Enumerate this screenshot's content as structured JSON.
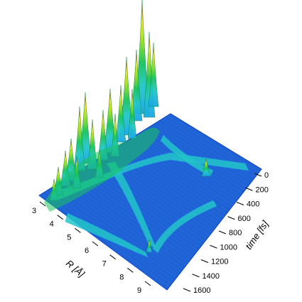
{
  "chart_data": {
    "type": "surface",
    "colors": [
      "#0a3fc4",
      "#1aa6e8",
      "#22c7c7",
      "#17c45a",
      "#9ee01a",
      "#f2e31a",
      "#f08a12",
      "#d41a1a"
    ],
    "r_axis": {
      "label": "R [Å]",
      "ticks": [
        "3",
        "4",
        "5",
        "6",
        "7",
        "8",
        "9"
      ],
      "range": [
        3,
        9
      ]
    },
    "time_axis": {
      "label": "time [fs]",
      "ticks": [
        "0",
        "200",
        "400",
        "600",
        "800",
        "1000",
        "1200",
        "1400",
        "1600"
      ],
      "range": [
        0,
        1600
      ]
    },
    "z_axis": {
      "label": "",
      "ticks": [],
      "range": [
        0,
        1
      ]
    },
    "grid": false,
    "legend": "none"
  }
}
